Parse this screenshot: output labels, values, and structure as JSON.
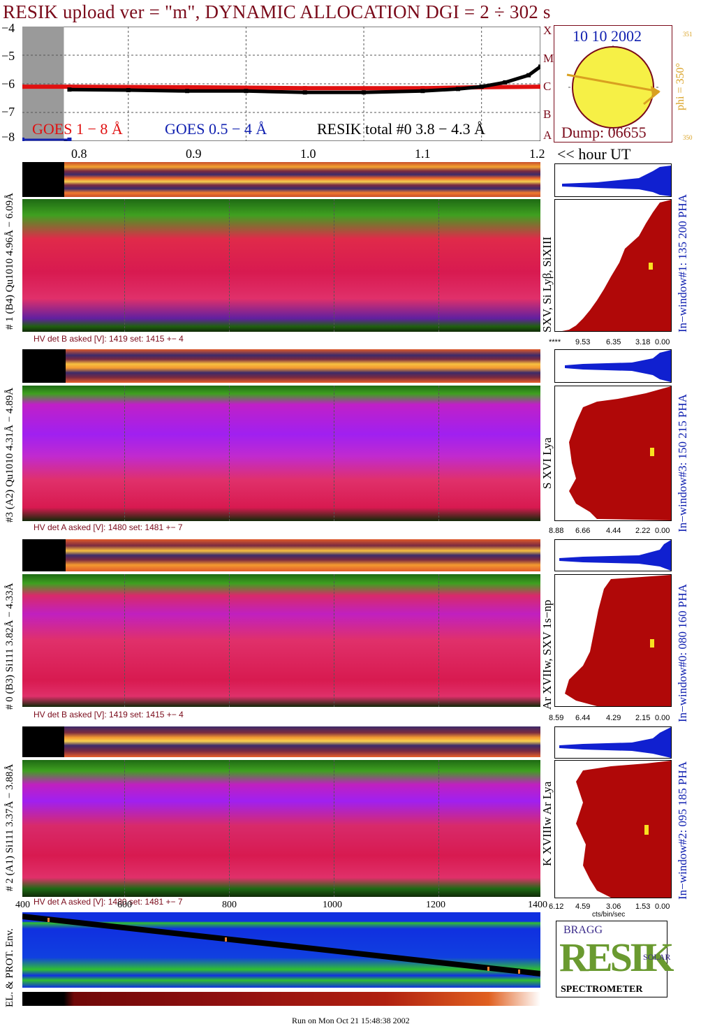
{
  "title": "RESIK upload ver = \"m\", DYNAMIC ALLOCATION  DGI =   2 ÷ 302 s",
  "goes_panel": {
    "y_ticks": [
      "−4",
      "−5",
      "−6",
      "−7",
      "−8"
    ],
    "class_letters": [
      "X",
      "M",
      "C",
      "B",
      "A"
    ],
    "legend_goes_long": "GOES 1 − 8 Å",
    "legend_goes_short": "GOES 0.5 − 4 Å",
    "legend_resik": "RESIK total #0  3.8 − 4.3 Å",
    "colors": {
      "goes_long": "#e01010",
      "goes_short": "#1020b0",
      "resik": "#000000"
    }
  },
  "time_axis": {
    "ticks": [
      "0.8",
      "0.9",
      "1.0",
      "1.1",
      "1.2"
    ],
    "unit_label": "<< hour UT"
  },
  "orbit_panel": {
    "date": "10 10 2002",
    "dump": "Dump: 06655",
    "phi_label": "phi = 350°",
    "phi_small_a": "351",
    "phi_small_b": "350"
  },
  "channels": [
    {
      "id": "ch1",
      "left_label": "# 1 (B4) Qu1010 4.96Å − 6.09Å",
      "line_label": "SXV, Si Lyβ, SiXIII",
      "right_label": "In−window#1:  135 200 PHA",
      "hv": "HV det B asked [V]:  1419 set:  1415  +−    4",
      "x_ticks": [
        "****",
        "9.53",
        "6.35",
        "3.18",
        "0.00"
      ]
    },
    {
      "id": "ch3",
      "left_label": "#3 (A2) Qu1010  4.31Å − 4.89Å",
      "line_label": "S XVI Lya",
      "right_label": "In−window#3:  150 215 PHA",
      "hv": "HV det A asked [V]:  1480 set:  1481  +−    7",
      "x_ticks": [
        "8.88",
        "6.66",
        "4.44",
        "2.22",
        "0.00"
      ]
    },
    {
      "id": "ch0",
      "left_label": "# 0 (B3) Si111  3.82Å − 4.33Å",
      "line_label": "Ar XVIIw, SXV 1s−np",
      "right_label": "In−window#0:  080 160 PHA",
      "hv": "HV det B asked [V]:  1419 set:  1415  +−    4",
      "x_ticks": [
        "8.59",
        "6.44",
        "4.29",
        "2.15",
        "0.00"
      ]
    },
    {
      "id": "ch2",
      "left_label": "# 2 (A1) Si111  3.37Å − 3.88Å",
      "line_label": "K XVIIIw  Ar Lya",
      "right_label": "In−window#2:  095 185 PHA",
      "hv": "HV det A asked [V]:  1480 set:  1481  +−    7",
      "x_ticks": [
        "6.12",
        "4.59",
        "3.06",
        "1.53",
        "0.00"
      ],
      "x_unit": "cts/bin/sec"
    }
  ],
  "env_panel": {
    "label": "EL. & PROT. Env.",
    "x_ticks": [
      "400",
      "600",
      "800",
      "1000",
      "1200",
      "1400"
    ]
  },
  "logo": {
    "word": "RESIK",
    "small_bragg": "BRAGG",
    "small_solar": "SOLAR",
    "caption": "SPECTROMETER"
  },
  "footer": "Run on Mon Oct 21 15:48:38 2002",
  "chart_data": {
    "type": "line",
    "title": "RESIK upload ver = \"m\", DYNAMIC ALLOCATION  DGI =   2 ÷ 302 s",
    "xlabel": "<< hour UT",
    "ylabel": "",
    "xlim": [
      0.76,
      1.2
    ],
    "ylim": [
      -8,
      -4
    ],
    "series": [
      {
        "name": "GOES 1 − 8 Å",
        "x": [
          0.76,
          0.8,
          0.9,
          1.0,
          1.1,
          1.15,
          1.2
        ],
        "values": [
          -6.1,
          -6.1,
          -6.12,
          -6.15,
          -6.15,
          -6.12,
          -6.1
        ]
      },
      {
        "name": "RESIK total #0  3.8 − 4.3 Å",
        "x": [
          0.8,
          0.85,
          0.9,
          0.95,
          1.0,
          1.05,
          1.1,
          1.13,
          1.15,
          1.17,
          1.19,
          1.2
        ],
        "values": [
          -6.2,
          -6.22,
          -6.25,
          -6.25,
          -6.3,
          -6.3,
          -6.25,
          -6.18,
          -6.1,
          -5.95,
          -5.7,
          -5.4
        ]
      },
      {
        "name": "GOES 0.5 − 4 Å",
        "x": [
          0.76,
          0.8
        ],
        "values": [
          -7.95,
          -7.95
        ]
      }
    ]
  }
}
